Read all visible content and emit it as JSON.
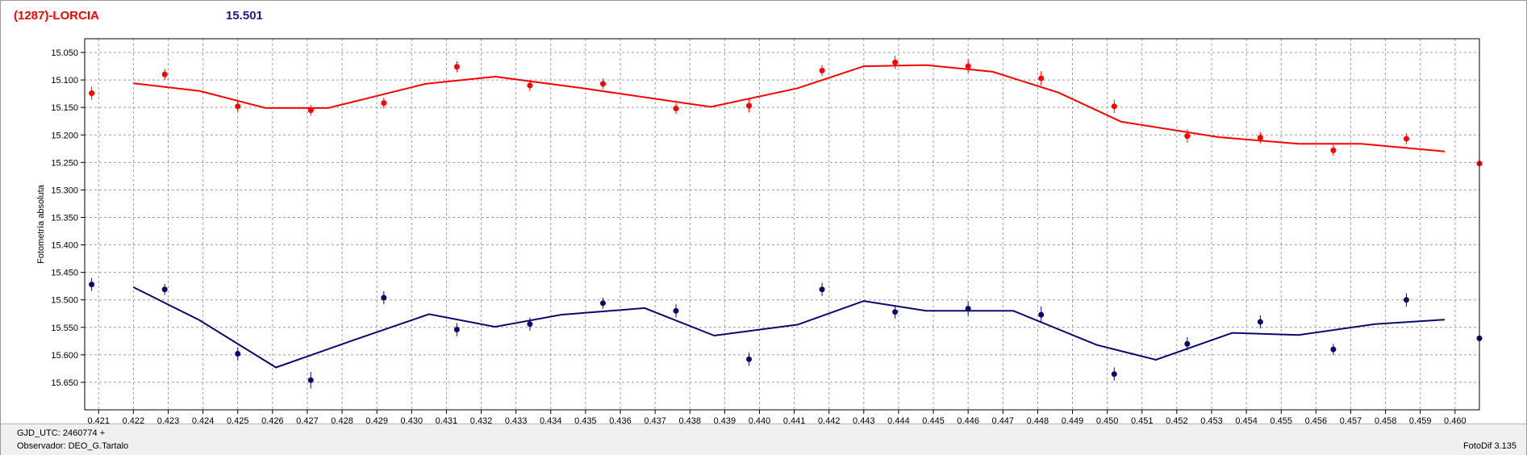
{
  "header": {
    "object_name": "(1287)-LORCIA",
    "magnitude": "15.501"
  },
  "footer": {
    "date_label": "GJD_UTC: 2460774 +",
    "observer_label": "Observador: DEO_G.Tartalo",
    "software_label": "FotoDif 3.135"
  },
  "colors": {
    "series_top": "#ff0000",
    "series_bottom": "#0a0a6e",
    "grid": "#a0a0a0",
    "frame": "#9a9a9a"
  },
  "chart_data": {
    "type": "scatter",
    "title": "",
    "xlabel": "",
    "ylabel": "Fotometría absoluta",
    "xlim": [
      0.4206,
      0.4607
    ],
    "ylim": [
      15.025,
      15.7
    ],
    "y_inverted": true,
    "grid": true,
    "x_ticks": [
      0.421,
      0.422,
      0.423,
      0.424,
      0.425,
      0.426,
      0.427,
      0.428,
      0.429,
      0.43,
      0.431,
      0.432,
      0.433,
      0.434,
      0.435,
      0.436,
      0.437,
      0.438,
      0.439,
      0.44,
      0.441,
      0.442,
      0.443,
      0.444,
      0.445,
      0.446,
      0.447,
      0.448,
      0.449,
      0.45,
      0.451,
      0.452,
      0.453,
      0.454,
      0.455,
      0.456,
      0.457,
      0.458,
      0.459,
      0.46
    ],
    "x_tick_labels": [
      "0.421",
      "0.422",
      "0.423",
      "0.424",
      "0.425",
      "0.426",
      "0.427",
      "0.428",
      "0.429",
      "0.430",
      "0.431",
      "0.432",
      "0.433",
      "0.434",
      "0.435",
      "0.436",
      "0.437",
      "0.438",
      "0.439",
      "0.440",
      "0.441",
      "0.442",
      "0.443",
      "0.444",
      "0.445",
      "0.446",
      "0.447",
      "0.448",
      "0.449",
      "0.450",
      "0.451",
      "0.452",
      "0.453",
      "0.454",
      "0.455",
      "0.456",
      "0.457",
      "0.458",
      "0.459",
      "0.460"
    ],
    "y_ticks": [
      15.05,
      15.1,
      15.15,
      15.2,
      15.25,
      15.3,
      15.35,
      15.4,
      15.45,
      15.5,
      15.55,
      15.6,
      15.65
    ],
    "y_tick_labels": [
      "15.050",
      "15.100",
      "15.150",
      "15.200",
      "15.250",
      "15.300",
      "15.350",
      "15.400",
      "15.450",
      "15.500",
      "15.550",
      "15.600",
      "15.650"
    ],
    "series": [
      {
        "id": "top",
        "points": [
          [
            0.4208,
            15.124,
            0.012
          ],
          [
            0.4229,
            15.09,
            0.01
          ],
          [
            0.425,
            15.148,
            0.01
          ],
          [
            0.4271,
            15.155,
            0.01
          ],
          [
            0.4292,
            15.142,
            0.01
          ],
          [
            0.4313,
            15.076,
            0.01
          ],
          [
            0.4334,
            15.11,
            0.01
          ],
          [
            0.4355,
            15.107,
            0.01
          ],
          [
            0.4376,
            15.152,
            0.01
          ],
          [
            0.4397,
            15.147,
            0.012
          ],
          [
            0.4418,
            15.083,
            0.01
          ],
          [
            0.4439,
            15.068,
            0.012
          ],
          [
            0.446,
            15.075,
            0.012
          ],
          [
            0.4481,
            15.097,
            0.013
          ],
          [
            0.4502,
            15.148,
            0.012
          ],
          [
            0.4523,
            15.202,
            0.012
          ],
          [
            0.4544,
            15.205,
            0.01
          ],
          [
            0.4565,
            15.228,
            0.01
          ],
          [
            0.4586,
            15.207,
            0.01
          ],
          [
            0.4607,
            15.252,
            0.012
          ]
        ],
        "fit": [
          [
            0.422,
            15.106
          ],
          [
            0.4239,
            15.12
          ],
          [
            0.4258,
            15.151
          ],
          [
            0.4276,
            15.151
          ],
          [
            0.4304,
            15.107
          ],
          [
            0.4324,
            15.094
          ],
          [
            0.4349,
            15.115
          ],
          [
            0.4386,
            15.149
          ],
          [
            0.4411,
            15.115
          ],
          [
            0.443,
            15.075
          ],
          [
            0.4448,
            15.073
          ],
          [
            0.4467,
            15.085
          ],
          [
            0.4486,
            15.123
          ],
          [
            0.4504,
            15.176
          ],
          [
            0.4532,
            15.204
          ],
          [
            0.4555,
            15.216
          ],
          [
            0.4573,
            15.216
          ],
          [
            0.4597,
            15.23
          ]
        ]
      },
      {
        "id": "bottom",
        "points": [
          [
            0.4208,
            15.472,
            0.012
          ],
          [
            0.4229,
            15.481,
            0.01
          ],
          [
            0.425,
            15.598,
            0.012
          ],
          [
            0.4271,
            15.646,
            0.015
          ],
          [
            0.4292,
            15.496,
            0.012
          ],
          [
            0.4313,
            15.554,
            0.012
          ],
          [
            0.4334,
            15.544,
            0.012
          ],
          [
            0.4355,
            15.506,
            0.01
          ],
          [
            0.4376,
            15.52,
            0.012
          ],
          [
            0.4397,
            15.608,
            0.012
          ],
          [
            0.4418,
            15.481,
            0.012
          ],
          [
            0.4439,
            15.522,
            0.012
          ],
          [
            0.446,
            15.516,
            0.013
          ],
          [
            0.4481,
            15.527,
            0.015
          ],
          [
            0.4502,
            15.635,
            0.012
          ],
          [
            0.4523,
            15.58,
            0.012
          ],
          [
            0.4544,
            15.54,
            0.012
          ],
          [
            0.4565,
            15.59,
            0.01
          ],
          [
            0.4586,
            15.5,
            0.012
          ],
          [
            0.4607,
            15.57,
            0.012
          ]
        ],
        "fit": [
          [
            0.422,
            15.477
          ],
          [
            0.4239,
            15.537
          ],
          [
            0.4261,
            15.623
          ],
          [
            0.4283,
            15.574
          ],
          [
            0.4305,
            15.526
          ],
          [
            0.4324,
            15.549
          ],
          [
            0.4343,
            15.527
          ],
          [
            0.4367,
            15.515
          ],
          [
            0.4387,
            15.565
          ],
          [
            0.4411,
            15.545
          ],
          [
            0.443,
            15.502
          ],
          [
            0.4448,
            15.52
          ],
          [
            0.4473,
            15.52
          ],
          [
            0.4497,
            15.582
          ],
          [
            0.4514,
            15.609
          ],
          [
            0.4536,
            15.56
          ],
          [
            0.4555,
            15.564
          ],
          [
            0.4577,
            15.544
          ],
          [
            0.4597,
            15.536
          ]
        ]
      }
    ]
  }
}
